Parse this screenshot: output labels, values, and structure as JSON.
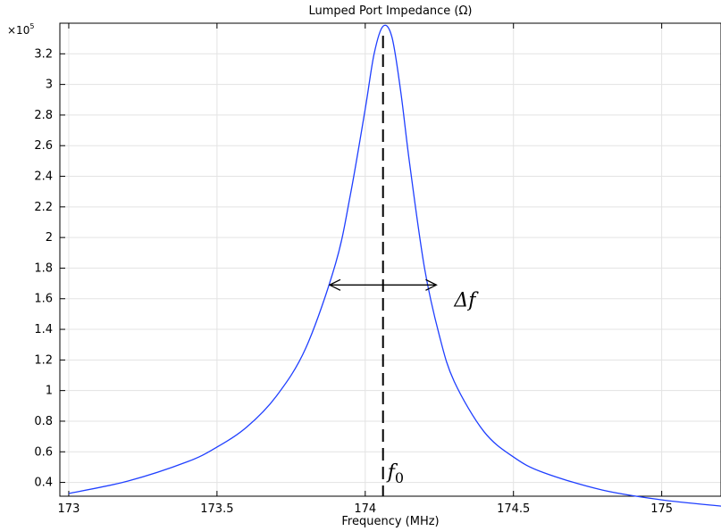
{
  "chart_data": {
    "type": "line",
    "title": "Lumped Port Impedance (Ω)",
    "xlabel": "Frequency (MHz)",
    "ylabel": "",
    "y_multiplier": "×10",
    "y_multiplier_exp": "5",
    "xlim": [
      172.97,
      175.2
    ],
    "ylim": [
      0.31,
      3.4
    ],
    "x_ticks": [
      173,
      173.5,
      174,
      174.5,
      175
    ],
    "x_tick_labels": [
      "173",
      "173.5",
      "174",
      "174.5",
      "175"
    ],
    "y_ticks": [
      0.4,
      0.6,
      0.8,
      1,
      1.2,
      1.4,
      1.6,
      1.8,
      2,
      2.2,
      2.4,
      2.6,
      2.8,
      3,
      3.2
    ],
    "y_tick_labels": [
      "0.4",
      "0.6",
      "0.8",
      "1",
      "1.2",
      "1.4",
      "1.6",
      "1.8",
      "2",
      "2.2",
      "2.4",
      "2.6",
      "2.8",
      "3",
      "3.2"
    ],
    "grid": true,
    "line_color": "#1f3fff",
    "series": [
      {
        "x": [
          173.0,
          173.2,
          173.4,
          173.5,
          173.6,
          173.7,
          173.8,
          173.9,
          173.95,
          174.0,
          174.03,
          174.06,
          174.09,
          174.12,
          174.15,
          174.2,
          174.25,
          174.3,
          174.4,
          174.5,
          174.6,
          174.8,
          175.0,
          175.2
        ],
        "values": [
          0.328,
          0.409,
          0.535,
          0.631,
          0.761,
          0.963,
          1.28,
          1.83,
          2.28,
          2.84,
          3.2,
          3.38,
          3.31,
          2.95,
          2.48,
          1.8,
          1.36,
          1.06,
          0.733,
          0.566,
          0.465,
          0.35,
          0.286,
          0.245
        ]
      }
    ],
    "annotations": {
      "f0_x": 174.06,
      "f0_label": "f",
      "f0_sub": "0",
      "delta_f_label": "Δf",
      "delta_f_y": 1.69,
      "delta_f_x_start": 173.88,
      "delta_f_x_end": 174.24
    }
  }
}
